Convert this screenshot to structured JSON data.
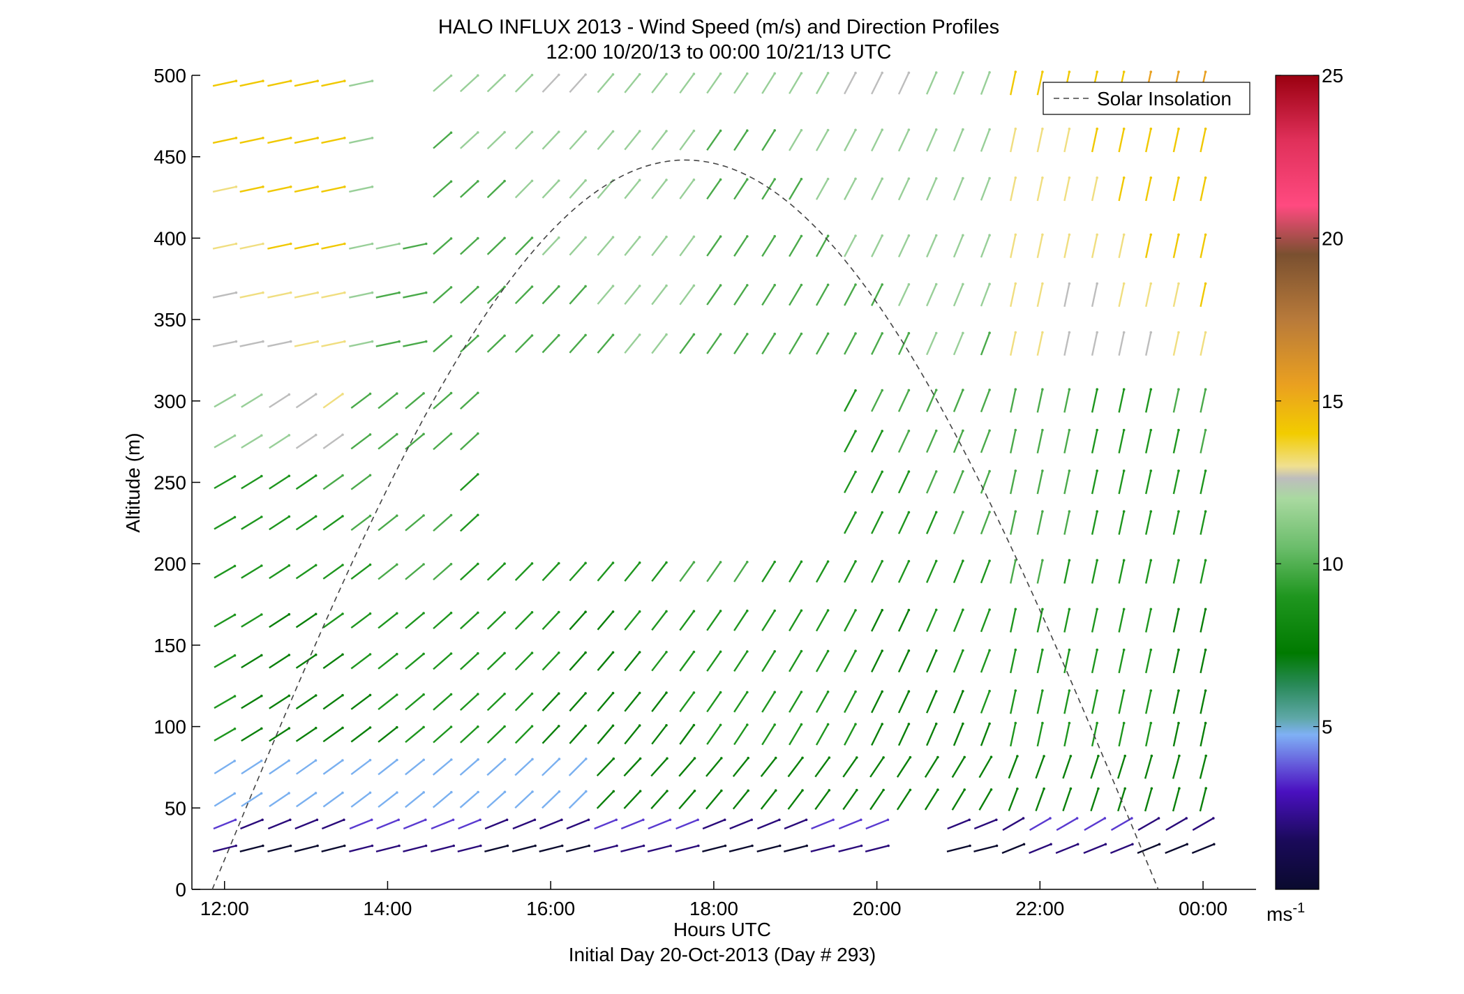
{
  "chart_data": {
    "type": "quiver",
    "title": "HALO INFLUX 2013 - Wind Speed (m/s) and Direction Profiles",
    "subtitle": "12:00 10/20/13 to 00:00 10/21/13  UTC",
    "xlabel": "Hours UTC",
    "xlabel2": "Initial Day 20-Oct-2013 (Day # 293)",
    "ylabel": "Altitude (m)",
    "xlim": [
      11.6,
      24.65
    ],
    "ylim": [
      0,
      500
    ],
    "x_tick_labels": [
      {
        "value": 12,
        "label": "12:00"
      },
      {
        "value": 14,
        "label": "14:00"
      },
      {
        "value": 16,
        "label": "16:00"
      },
      {
        "value": 18,
        "label": "18:00"
      },
      {
        "value": 20,
        "label": "20:00"
      },
      {
        "value": 22,
        "label": "22:00"
      },
      {
        "value": 24,
        "label": "00:00"
      }
    ],
    "y_ticks": [
      0,
      50,
      100,
      150,
      200,
      250,
      300,
      350,
      400,
      450,
      500
    ],
    "colorbar": {
      "range": [
        0,
        25
      ],
      "ticks": [
        5,
        10,
        15,
        20,
        25
      ],
      "unit_label": "ms",
      "unit_exponent": "-1"
    },
    "legend": {
      "label": "Solar Insolation",
      "position": "top-right"
    },
    "solar_insolation": {
      "start_hour": 11.85,
      "end_hour": 23.45,
      "peak_altitude": 448
    },
    "wind_altitudes": [
      25,
      40,
      55,
      75,
      95,
      115,
      140,
      165,
      195,
      225,
      250,
      275,
      300,
      335,
      365,
      395,
      430,
      460,
      495
    ],
    "wind_hours": [
      12.0,
      12.33,
      12.67,
      13.0,
      13.33,
      13.67,
      14.0,
      14.33,
      14.67,
      15.0,
      15.33,
      15.67,
      16.0,
      16.33,
      16.67,
      17.0,
      17.33,
      17.67,
      18.0,
      18.33,
      18.67,
      19.0,
      19.33,
      19.67,
      20.0,
      20.33,
      20.67,
      21.0,
      21.33,
      21.67,
      22.0,
      22.33,
      22.67,
      23.0,
      23.33,
      23.67,
      24.0
    ]
  }
}
